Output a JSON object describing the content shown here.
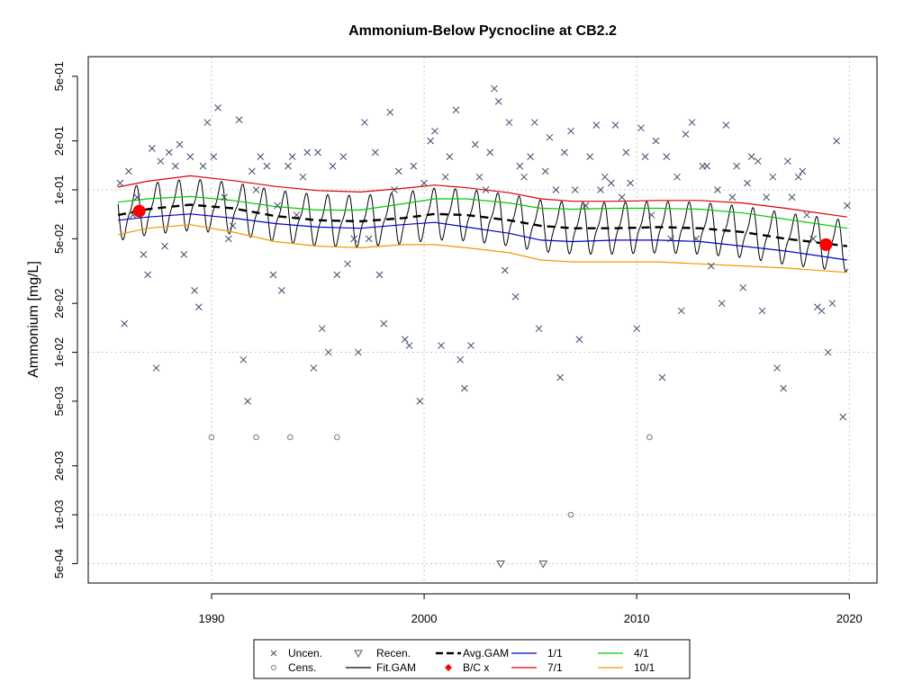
{
  "chart_data": {
    "type": "scatter",
    "title": "Ammonium-Below Pycnocline at CB2.2",
    "xlabel": "",
    "ylabel": "Ammonium [mg/L]",
    "y_scale": "log",
    "xlim": [
      1984.2,
      2021.3
    ],
    "ylim": [
      0.00038,
      0.66
    ],
    "x_ticks": [
      1990,
      2000,
      2010,
      2020
    ],
    "x_tick_labels": [
      "1990",
      "2000",
      "2010",
      "2020"
    ],
    "y_ticks": [
      0.0005,
      0.001,
      0.002,
      0.005,
      0.01,
      0.02,
      0.05,
      0.1,
      0.2,
      0.5
    ],
    "y_tick_labels": [
      "5e-04",
      "1e-03",
      "2e-03",
      "5e-03",
      "1e-02",
      "2e-02",
      "5e-02",
      "1e-01",
      "2e-01",
      "5e-01"
    ],
    "grid": true,
    "legend_position": "bottom",
    "colors": {
      "uncen": "#3b4a6b",
      "cens": "#777777",
      "recen": "#555555",
      "fit": "#000000",
      "avg": "#000000",
      "bc": "#ff0000",
      "d1_1": "#0000cc",
      "d4_1": "#00cc00",
      "d7_1": "#dd0000",
      "d10_1": "#ee9900",
      "grid": "#c8c8c8"
    },
    "legend": [
      {
        "label": "Uncen.",
        "symbol": "x",
        "color": "#3b4a6b"
      },
      {
        "label": "Cens.",
        "symbol": "circle",
        "color": "#777777"
      },
      {
        "label": "Recen.",
        "symbol": "triangle-down",
        "color": "#555555"
      },
      {
        "label": "Fit.GAM",
        "symbol": "line",
        "color": "#000000"
      },
      {
        "label": "Avg.GAM",
        "symbol": "dashed-line",
        "color": "#000000"
      },
      {
        "label": "B/C x",
        "symbol": "diamond",
        "color": "#ff0000"
      },
      {
        "label": "1/1",
        "symbol": "line",
        "color": "#0000cc"
      },
      {
        "label": "4/1",
        "symbol": "line",
        "color": "#00cc00"
      },
      {
        "label": "7/1",
        "symbol": "line",
        "color": "#dd0000"
      },
      {
        "label": "10/1",
        "symbol": "line",
        "color": "#ee9900"
      }
    ],
    "series": [
      {
        "name": "7/1",
        "x": [
          1985.6,
          1987,
          1989,
          1991,
          1993,
          1995,
          1997,
          1999,
          2000.5,
          2002,
          2004,
          2005.5,
          2007,
          2009,
          2011,
          2013,
          2015,
          2017,
          2019.9
        ],
        "y": [
          0.104,
          0.113,
          0.122,
          0.114,
          0.105,
          0.099,
          0.097,
          0.102,
          0.107,
          0.103,
          0.096,
          0.088,
          0.085,
          0.085,
          0.086,
          0.086,
          0.083,
          0.077,
          0.068
        ]
      },
      {
        "name": "4/1",
        "x": [
          1985.6,
          1987,
          1989,
          1991,
          1993,
          1995,
          1997,
          1999,
          2000.5,
          2002,
          2004,
          2005.5,
          2007,
          2009,
          2011,
          2013,
          2015,
          2017,
          2019.9
        ],
        "y": [
          0.084,
          0.088,
          0.091,
          0.086,
          0.079,
          0.075,
          0.075,
          0.082,
          0.088,
          0.088,
          0.083,
          0.077,
          0.076,
          0.077,
          0.077,
          0.076,
          0.072,
          0.066,
          0.058
        ]
      },
      {
        "name": "1/1",
        "x": [
          1985.6,
          1987,
          1989,
          1991,
          1993,
          1995,
          1997,
          1999,
          2000.5,
          2002,
          2004,
          2005.5,
          2007,
          2009,
          2011,
          2013,
          2015,
          2017,
          2019.9
        ],
        "y": [
          0.065,
          0.068,
          0.071,
          0.067,
          0.062,
          0.059,
          0.058,
          0.061,
          0.063,
          0.059,
          0.054,
          0.049,
          0.048,
          0.049,
          0.049,
          0.048,
          0.045,
          0.042,
          0.037
        ]
      },
      {
        "name": "10/1",
        "x": [
          1985.6,
          1987,
          1989,
          1991,
          1993,
          1995,
          1997,
          1999,
          2000.5,
          2002,
          2004,
          2005.5,
          2007,
          2009,
          2011,
          2013,
          2015,
          2017,
          2019.9
        ],
        "y": [
          0.053,
          0.058,
          0.061,
          0.055,
          0.048,
          0.045,
          0.044,
          0.046,
          0.046,
          0.044,
          0.041,
          0.037,
          0.036,
          0.036,
          0.036,
          0.035,
          0.034,
          0.033,
          0.031
        ]
      },
      {
        "name": "Avg.GAM",
        "x": [
          1985.6,
          1987,
          1989,
          1991,
          1993,
          1995,
          1997,
          1999,
          2000.5,
          2002,
          2004,
          2005.5,
          2007,
          2009,
          2011,
          2013,
          2015,
          2017,
          2019.9
        ],
        "y": [
          0.07,
          0.076,
          0.081,
          0.077,
          0.069,
          0.065,
          0.064,
          0.067,
          0.071,
          0.07,
          0.065,
          0.06,
          0.058,
          0.058,
          0.059,
          0.058,
          0.055,
          0.05,
          0.045
        ]
      },
      {
        "name": "B/C x",
        "x": [
          1986.6,
          2018.9
        ],
        "y": [
          0.074,
          0.046
        ]
      },
      {
        "name": "Uncen.",
        "x": [
          1985.7,
          1985.9,
          1986.1,
          1986.3,
          1986.5,
          1986.8,
          1987,
          1987.2,
          1987.4,
          1987.6,
          1987.8,
          1988,
          1988.3,
          1988.5,
          1988.7,
          1989,
          1989.2,
          1989.4,
          1989.6,
          1989.8,
          1990.1,
          1990.3,
          1990.6,
          1990.8,
          1991,
          1991.3,
          1991.5,
          1991.7,
          1991.9,
          1992.1,
          1992.3,
          1992.6,
          1992.9,
          1993.1,
          1993.3,
          1993.6,
          1993.8,
          1994,
          1994.3,
          1994.5,
          1994.8,
          1995,
          1995.2,
          1995.5,
          1995.7,
          1995.9,
          1996.2,
          1996.4,
          1996.7,
          1996.9,
          1997.2,
          1997.4,
          1997.7,
          1997.9,
          1998.1,
          1998.4,
          1998.6,
          1998.8,
          1999.1,
          1999.3,
          1999.5,
          1999.8,
          2000,
          2000.3,
          2000.5,
          2000.8,
          2001,
          2001.2,
          2001.5,
          2001.7,
          2001.9,
          2002.2,
          2002.4,
          2002.6,
          2002.9,
          2003.1,
          2003.3,
          2003.5,
          2003.8,
          2004,
          2004.3,
          2004.5,
          2004.7,
          2005,
          2005.2,
          2005.4,
          2005.7,
          2005.9,
          2006.2,
          2006.4,
          2006.6,
          2006.9,
          2007.1,
          2007.3,
          2007.6,
          2007.8,
          2008.1,
          2008.3,
          2008.5,
          2008.8,
          2009,
          2009.3,
          2009.5,
          2009.7,
          2010,
          2010.2,
          2010.4,
          2010.7,
          2010.9,
          2011.2,
          2011.4,
          2011.6,
          2011.9,
          2012.1,
          2012.3,
          2012.6,
          2012.8,
          2013.1,
          2013.3,
          2013.5,
          2013.8,
          2014,
          2014.2,
          2014.5,
          2014.7,
          2015,
          2015.2,
          2015.4,
          2015.7,
          2015.9,
          2016.1,
          2016.4,
          2016.6,
          2016.9,
          2017.1,
          2017.3,
          2017.6,
          2017.8,
          2018,
          2018.3,
          2018.5,
          2018.7,
          2019,
          2019.2,
          2019.4,
          2019.7,
          2019.9
        ],
        "y": [
          0.11,
          0.015,
          0.13,
          0.07,
          0.09,
          0.04,
          0.03,
          0.18,
          0.008,
          0.15,
          0.045,
          0.17,
          0.14,
          0.19,
          0.04,
          0.16,
          0.024,
          0.019,
          0.14,
          0.26,
          0.16,
          0.32,
          0.09,
          0.05,
          0.06,
          0.27,
          0.009,
          0.005,
          0.13,
          0.1,
          0.16,
          0.14,
          0.03,
          0.08,
          0.024,
          0.14,
          0.16,
          0.07,
          0.12,
          0.17,
          0.008,
          0.17,
          0.014,
          0.01,
          0.14,
          0.03,
          0.16,
          0.035,
          0.05,
          0.01,
          0.26,
          0.05,
          0.17,
          0.03,
          0.015,
          0.3,
          0.1,
          0.13,
          0.012,
          0.011,
          0.14,
          0.005,
          0.11,
          0.2,
          0.23,
          0.011,
          0.12,
          0.16,
          0.31,
          0.009,
          0.006,
          0.011,
          0.19,
          0.12,
          0.1,
          0.17,
          0.42,
          0.35,
          0.032,
          0.26,
          0.022,
          0.14,
          0.12,
          0.16,
          0.26,
          0.014,
          0.13,
          0.21,
          0.1,
          0.007,
          0.17,
          0.23,
          0.1,
          0.012,
          0.08,
          0.16,
          0.25,
          0.1,
          0.12,
          0.11,
          0.25,
          0.09,
          0.17,
          0.11,
          0.014,
          0.24,
          0.16,
          0.07,
          0.2,
          0.007,
          0.16,
          0.05,
          0.12,
          0.018,
          0.22,
          0.26,
          0.05,
          0.14,
          0.14,
          0.034,
          0.1,
          0.02,
          0.25,
          0.09,
          0.14,
          0.025,
          0.11,
          0.16,
          0.15,
          0.018,
          0.09,
          0.12,
          0.008,
          0.006,
          0.15,
          0.09,
          0.12,
          0.13,
          0.07,
          0.05,
          0.019,
          0.018,
          0.01,
          0.02,
          0.2,
          0.004,
          0.08
        ]
      },
      {
        "name": "Cens.",
        "x": [
          1990,
          1992.1,
          1993.7,
          1995.9,
          2006.9,
          2010.6
        ],
        "y": [
          0.003,
          0.003,
          0.003,
          0.003,
          0.001,
          0.003
        ]
      },
      {
        "name": "Recen.",
        "x": [
          2003.6,
          2005.6
        ],
        "y": [
          0.0005,
          0.0005
        ]
      }
    ]
  }
}
